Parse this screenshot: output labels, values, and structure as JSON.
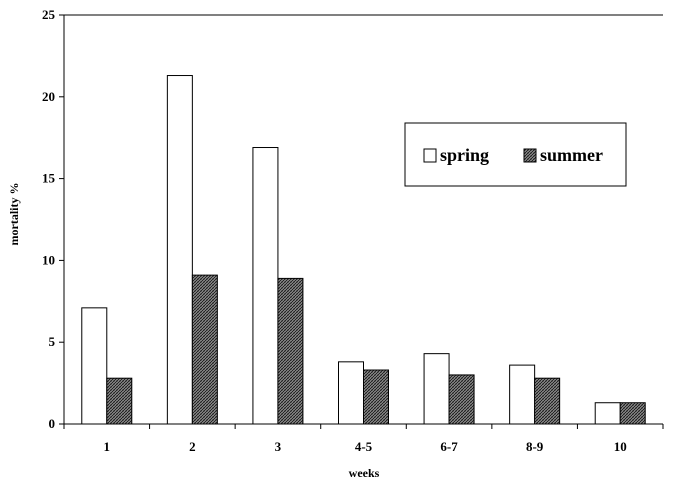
{
  "chart_data": {
    "type": "bar",
    "categories": [
      "1",
      "2",
      "3",
      "4-5",
      "6-7",
      "8-9",
      "10"
    ],
    "series": [
      {
        "name": "spring",
        "values": [
          7.1,
          21.3,
          16.9,
          3.8,
          4.3,
          3.6,
          1.3
        ],
        "color": "#ffffff",
        "pattern": "none"
      },
      {
        "name": "summer",
        "values": [
          2.8,
          9.1,
          8.9,
          3.3,
          3.0,
          2.8,
          1.3
        ],
        "color": "#555555",
        "pattern": "crosshatch"
      }
    ],
    "xlabel": "weeks",
    "ylabel": "mortality %",
    "ylim": [
      0,
      25
    ],
    "yticks": [
      "0",
      "5",
      "10",
      "15",
      "20",
      "25"
    ],
    "grid": false,
    "legend": {
      "position": "top-right",
      "entries": [
        "spring",
        "summer"
      ]
    }
  }
}
